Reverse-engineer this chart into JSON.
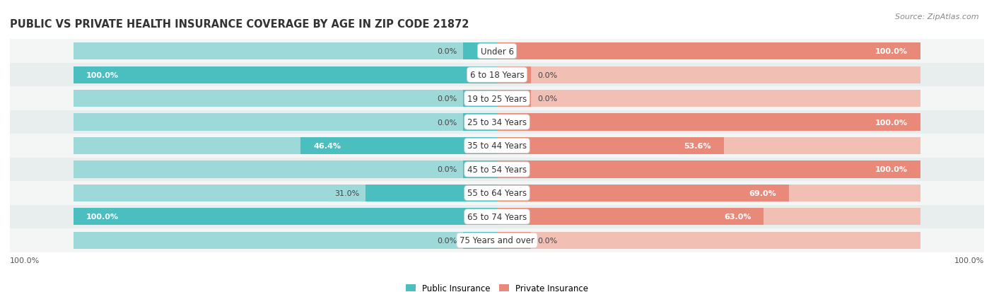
{
  "title": "PUBLIC VS PRIVATE HEALTH INSURANCE COVERAGE BY AGE IN ZIP CODE 21872",
  "source": "Source: ZipAtlas.com",
  "categories": [
    "Under 6",
    "6 to 18 Years",
    "19 to 25 Years",
    "25 to 34 Years",
    "35 to 44 Years",
    "45 to 54 Years",
    "55 to 64 Years",
    "65 to 74 Years",
    "75 Years and over"
  ],
  "public_values": [
    0.0,
    100.0,
    0.0,
    0.0,
    46.4,
    0.0,
    31.0,
    100.0,
    0.0
  ],
  "private_values": [
    100.0,
    0.0,
    0.0,
    100.0,
    53.6,
    100.0,
    69.0,
    63.0,
    0.0
  ],
  "public_color": "#4bbfbf",
  "private_color": "#e8897a",
  "public_color_light": "#9dd9d9",
  "private_color_light": "#f2bfb5",
  "row_bg_light": "#f4f6f6",
  "row_bg_dark": "#e8eded",
  "title_fontsize": 10.5,
  "label_fontsize": 8,
  "source_fontsize": 8,
  "legend_fontsize": 8.5,
  "value_fontsize": 8,
  "cat_fontsize": 8.5
}
